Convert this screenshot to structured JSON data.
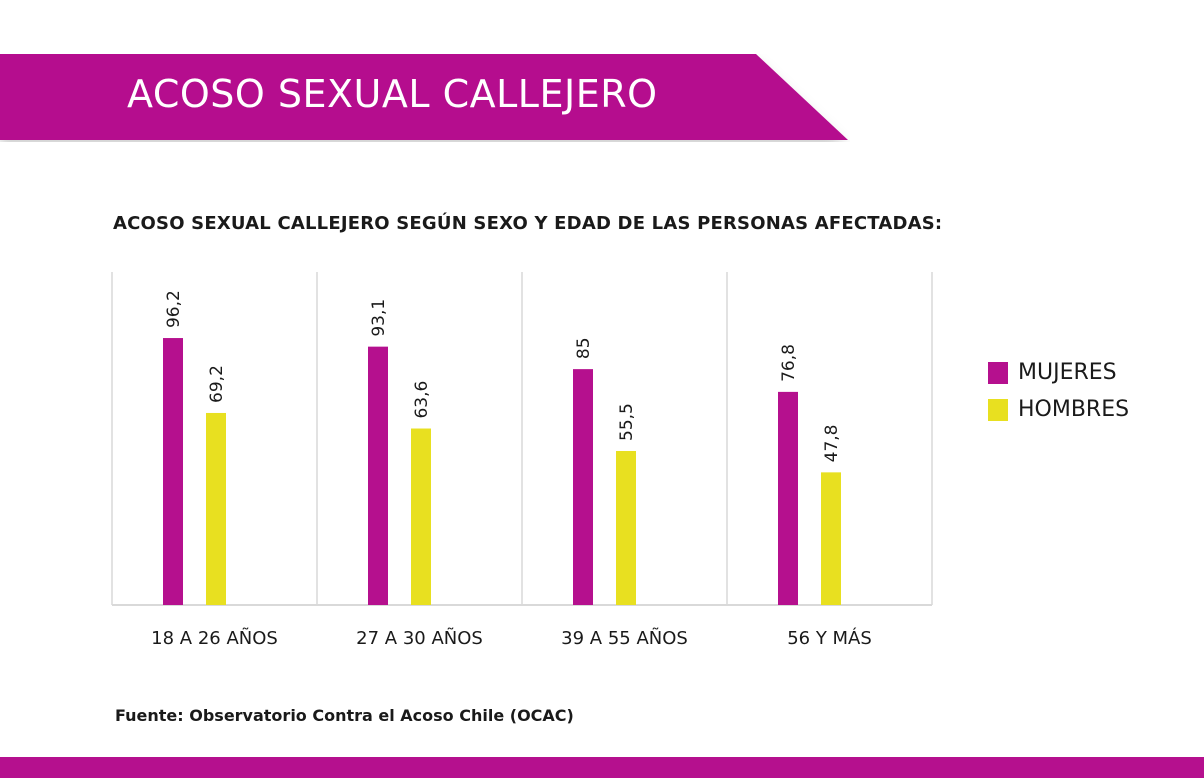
{
  "colors": {
    "brand": "#b5108e",
    "yellow": "#e8e020"
  },
  "header": {
    "title": "ACOSO SEXUAL CALLEJERO"
  },
  "chart_data": {
    "type": "bar",
    "title": "ACOSO SEXUAL CALLEJERO SEGÚN SEXO Y EDAD DE LAS PERSONAS AFECTADAS:",
    "categories": [
      "18 A 26 AÑOS",
      "27 A 30 AÑOS",
      "39 A 55 AÑOS",
      "56 Y MÁS"
    ],
    "series": [
      {
        "name": "MUJERES",
        "color": "#b5108e",
        "values": [
          96.2,
          93.1,
          85,
          76.8
        ],
        "labels": [
          "96,2",
          "93,1",
          "85",
          "76,8"
        ]
      },
      {
        "name": "HOMBRES",
        "color": "#e8e020",
        "values": [
          69.2,
          63.6,
          55.5,
          47.8
        ],
        "labels": [
          "69,2",
          "63,6",
          "55,5",
          "47,8"
        ]
      }
    ],
    "ylim": [
      0,
      120
    ],
    "legend": "right",
    "grid": "vertical separators"
  },
  "source": "Fuente: Observatorio Contra el Acoso Chile (OCAC)"
}
